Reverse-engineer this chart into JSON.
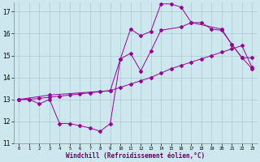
{
  "xlabel": "Windchill (Refroidissement éolien,°C)",
  "background_color": "#cce8ee",
  "line_color": "#990099",
  "grid_color": "#b0c8cc",
  "xlim": [
    -0.5,
    23.5
  ],
  "ylim": [
    11,
    17.4
  ],
  "yticks": [
    11,
    12,
    13,
    14,
    15,
    16,
    17
  ],
  "xticks": [
    0,
    1,
    2,
    3,
    4,
    5,
    6,
    7,
    8,
    9,
    10,
    11,
    12,
    13,
    14,
    15,
    16,
    17,
    18,
    19,
    20,
    21,
    22,
    23
  ],
  "line1_x": [
    0,
    1,
    2,
    3,
    4,
    5,
    6,
    7,
    8,
    9,
    10,
    11,
    12,
    13,
    14,
    15,
    16,
    17,
    18,
    19,
    20,
    21,
    22,
    23
  ],
  "line1_y": [
    13.0,
    13.0,
    12.8,
    13.0,
    11.9,
    11.9,
    11.8,
    11.7,
    11.55,
    11.9,
    14.85,
    16.2,
    15.9,
    16.1,
    17.35,
    17.35,
    17.2,
    16.5,
    16.5,
    16.2,
    16.15,
    15.5,
    14.9,
    14.4
  ],
  "line2_x": [
    0,
    1,
    2,
    3,
    4,
    5,
    6,
    7,
    8,
    9,
    10,
    11,
    12,
    13,
    14,
    15,
    16,
    17,
    18,
    19,
    20,
    21,
    22,
    23
  ],
  "line2_y": [
    13.0,
    13.0,
    13.05,
    13.1,
    13.15,
    13.2,
    13.25,
    13.3,
    13.35,
    13.4,
    13.55,
    13.7,
    13.85,
    14.0,
    14.2,
    14.4,
    14.55,
    14.7,
    14.85,
    15.0,
    15.15,
    15.3,
    15.45,
    14.45
  ],
  "line3_x": [
    0,
    3,
    9,
    10,
    11,
    12,
    13,
    14,
    16,
    17,
    20,
    21,
    22,
    23
  ],
  "line3_y": [
    13.0,
    13.2,
    13.4,
    14.85,
    15.1,
    14.3,
    15.2,
    16.15,
    16.3,
    16.5,
    16.2,
    15.5,
    14.9,
    14.9
  ]
}
